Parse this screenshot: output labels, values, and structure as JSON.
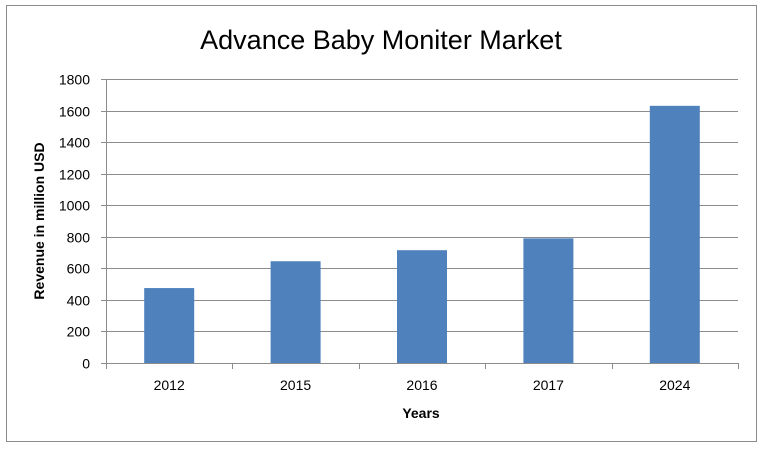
{
  "chart_data": {
    "type": "bar",
    "title": "Advance Baby Moniter Market",
    "xlabel": "Years",
    "ylabel": "Revenue in million USD",
    "categories": [
      "2012",
      "2015",
      "2016",
      "2017",
      "2024"
    ],
    "series": [
      {
        "values": [
          475,
          645,
          715,
          790,
          1630
        ],
        "color": "#4f81bd"
      }
    ],
    "ylim": [
      0,
      1800
    ],
    "yticks": [
      0,
      200,
      400,
      600,
      800,
      1000,
      1200,
      1400,
      1600,
      1800
    ],
    "grid": true,
    "legend": "none"
  }
}
